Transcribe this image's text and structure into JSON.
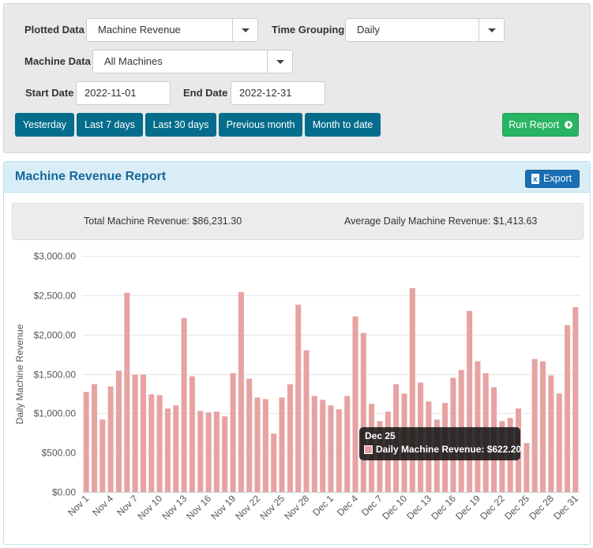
{
  "filters": {
    "plotted_data_label": "Plotted Data",
    "plotted_data_value": "Machine Revenue",
    "time_grouping_label": "Time Grouping",
    "time_grouping_value": "Daily",
    "machine_data_label": "Machine Data",
    "machine_data_value": "All Machines",
    "start_date_label": "Start Date",
    "start_date_value": "2022-11-01",
    "end_date_label": "End Date",
    "end_date_value": "2022-12-31",
    "quick_ranges": [
      "Yesterday",
      "Last 7 days",
      "Last 30 days",
      "Previous month",
      "Month to date"
    ],
    "run_report_label": "Run Report"
  },
  "report": {
    "title": "Machine Revenue Report",
    "export_label": "Export",
    "total_label": "Total Machine Revenue: $86,231.30",
    "average_label": "Average Daily Machine Revenue: $1,413.63"
  },
  "tooltip": {
    "date": "Dec 25",
    "line": "Daily Machine Revenue: $622.20"
  },
  "colors": {
    "bar": "#e7a2a2",
    "button_blue": "#046d8b",
    "button_green": "#28b463"
  },
  "chart_data": {
    "type": "bar",
    "xlabel": "",
    "ylabel": "Daily Machine Revenue",
    "ylim": [
      0,
      3000
    ],
    "yticks": [
      "$0.00",
      "$500.00",
      "$1,000.00",
      "$1,500.00",
      "$2,000.00",
      "$2,500.00",
      "$3,000.00"
    ],
    "grid": true,
    "categories": [
      "Nov 1",
      "Nov 2",
      "Nov 3",
      "Nov 4",
      "Nov 5",
      "Nov 6",
      "Nov 7",
      "Nov 8",
      "Nov 9",
      "Nov 10",
      "Nov 11",
      "Nov 12",
      "Nov 13",
      "Nov 14",
      "Nov 15",
      "Nov 16",
      "Nov 17",
      "Nov 18",
      "Nov 19",
      "Nov 20",
      "Nov 21",
      "Nov 22",
      "Nov 23",
      "Nov 24",
      "Nov 25",
      "Nov 26",
      "Nov 27",
      "Nov 28",
      "Nov 29",
      "Nov 30",
      "Dec 1",
      "Dec 2",
      "Dec 3",
      "Dec 4",
      "Dec 5",
      "Dec 6",
      "Dec 7",
      "Dec 8",
      "Dec 9",
      "Dec 10",
      "Dec 11",
      "Dec 12",
      "Dec 13",
      "Dec 14",
      "Dec 15",
      "Dec 16",
      "Dec 17",
      "Dec 18",
      "Dec 19",
      "Dec 20",
      "Dec 21",
      "Dec 22",
      "Dec 23",
      "Dec 24",
      "Dec 25",
      "Dec 26",
      "Dec 27",
      "Dec 28",
      "Dec 29",
      "Dec 30",
      "Dec 31"
    ],
    "xticks": [
      "Nov 1",
      "Nov 4",
      "Nov 7",
      "Nov 10",
      "Nov 13",
      "Nov 16",
      "Nov 19",
      "Nov 22",
      "Nov 25",
      "Nov 28",
      "Dec 1",
      "Dec 4",
      "Dec 7",
      "Dec 10",
      "Dec 13",
      "Dec 16",
      "Dec 19",
      "Dec 22",
      "Dec 25",
      "Dec 28",
      "Dec 31"
    ],
    "series": [
      {
        "name": "Daily Machine Revenue",
        "values": [
          1270,
          1370,
          920,
          1340,
          1540,
          2530,
          1490,
          1490,
          1240,
          1230,
          1060,
          1100,
          2210,
          1470,
          1030,
          1010,
          1020,
          960,
          1510,
          2540,
          1440,
          1200,
          1180,
          740,
          1200,
          1370,
          2380,
          1800,
          1220,
          1170,
          1100,
          1050,
          1220,
          2230,
          2020,
          1120,
          900,
          1020,
          1370,
          1250,
          2590,
          1390,
          1150,
          920,
          1130,
          1450,
          1550,
          2300,
          1660,
          1510,
          1330,
          900,
          940,
          1060,
          622.2,
          1690,
          1660,
          1480,
          1250,
          2120,
          2350
        ]
      }
    ]
  }
}
